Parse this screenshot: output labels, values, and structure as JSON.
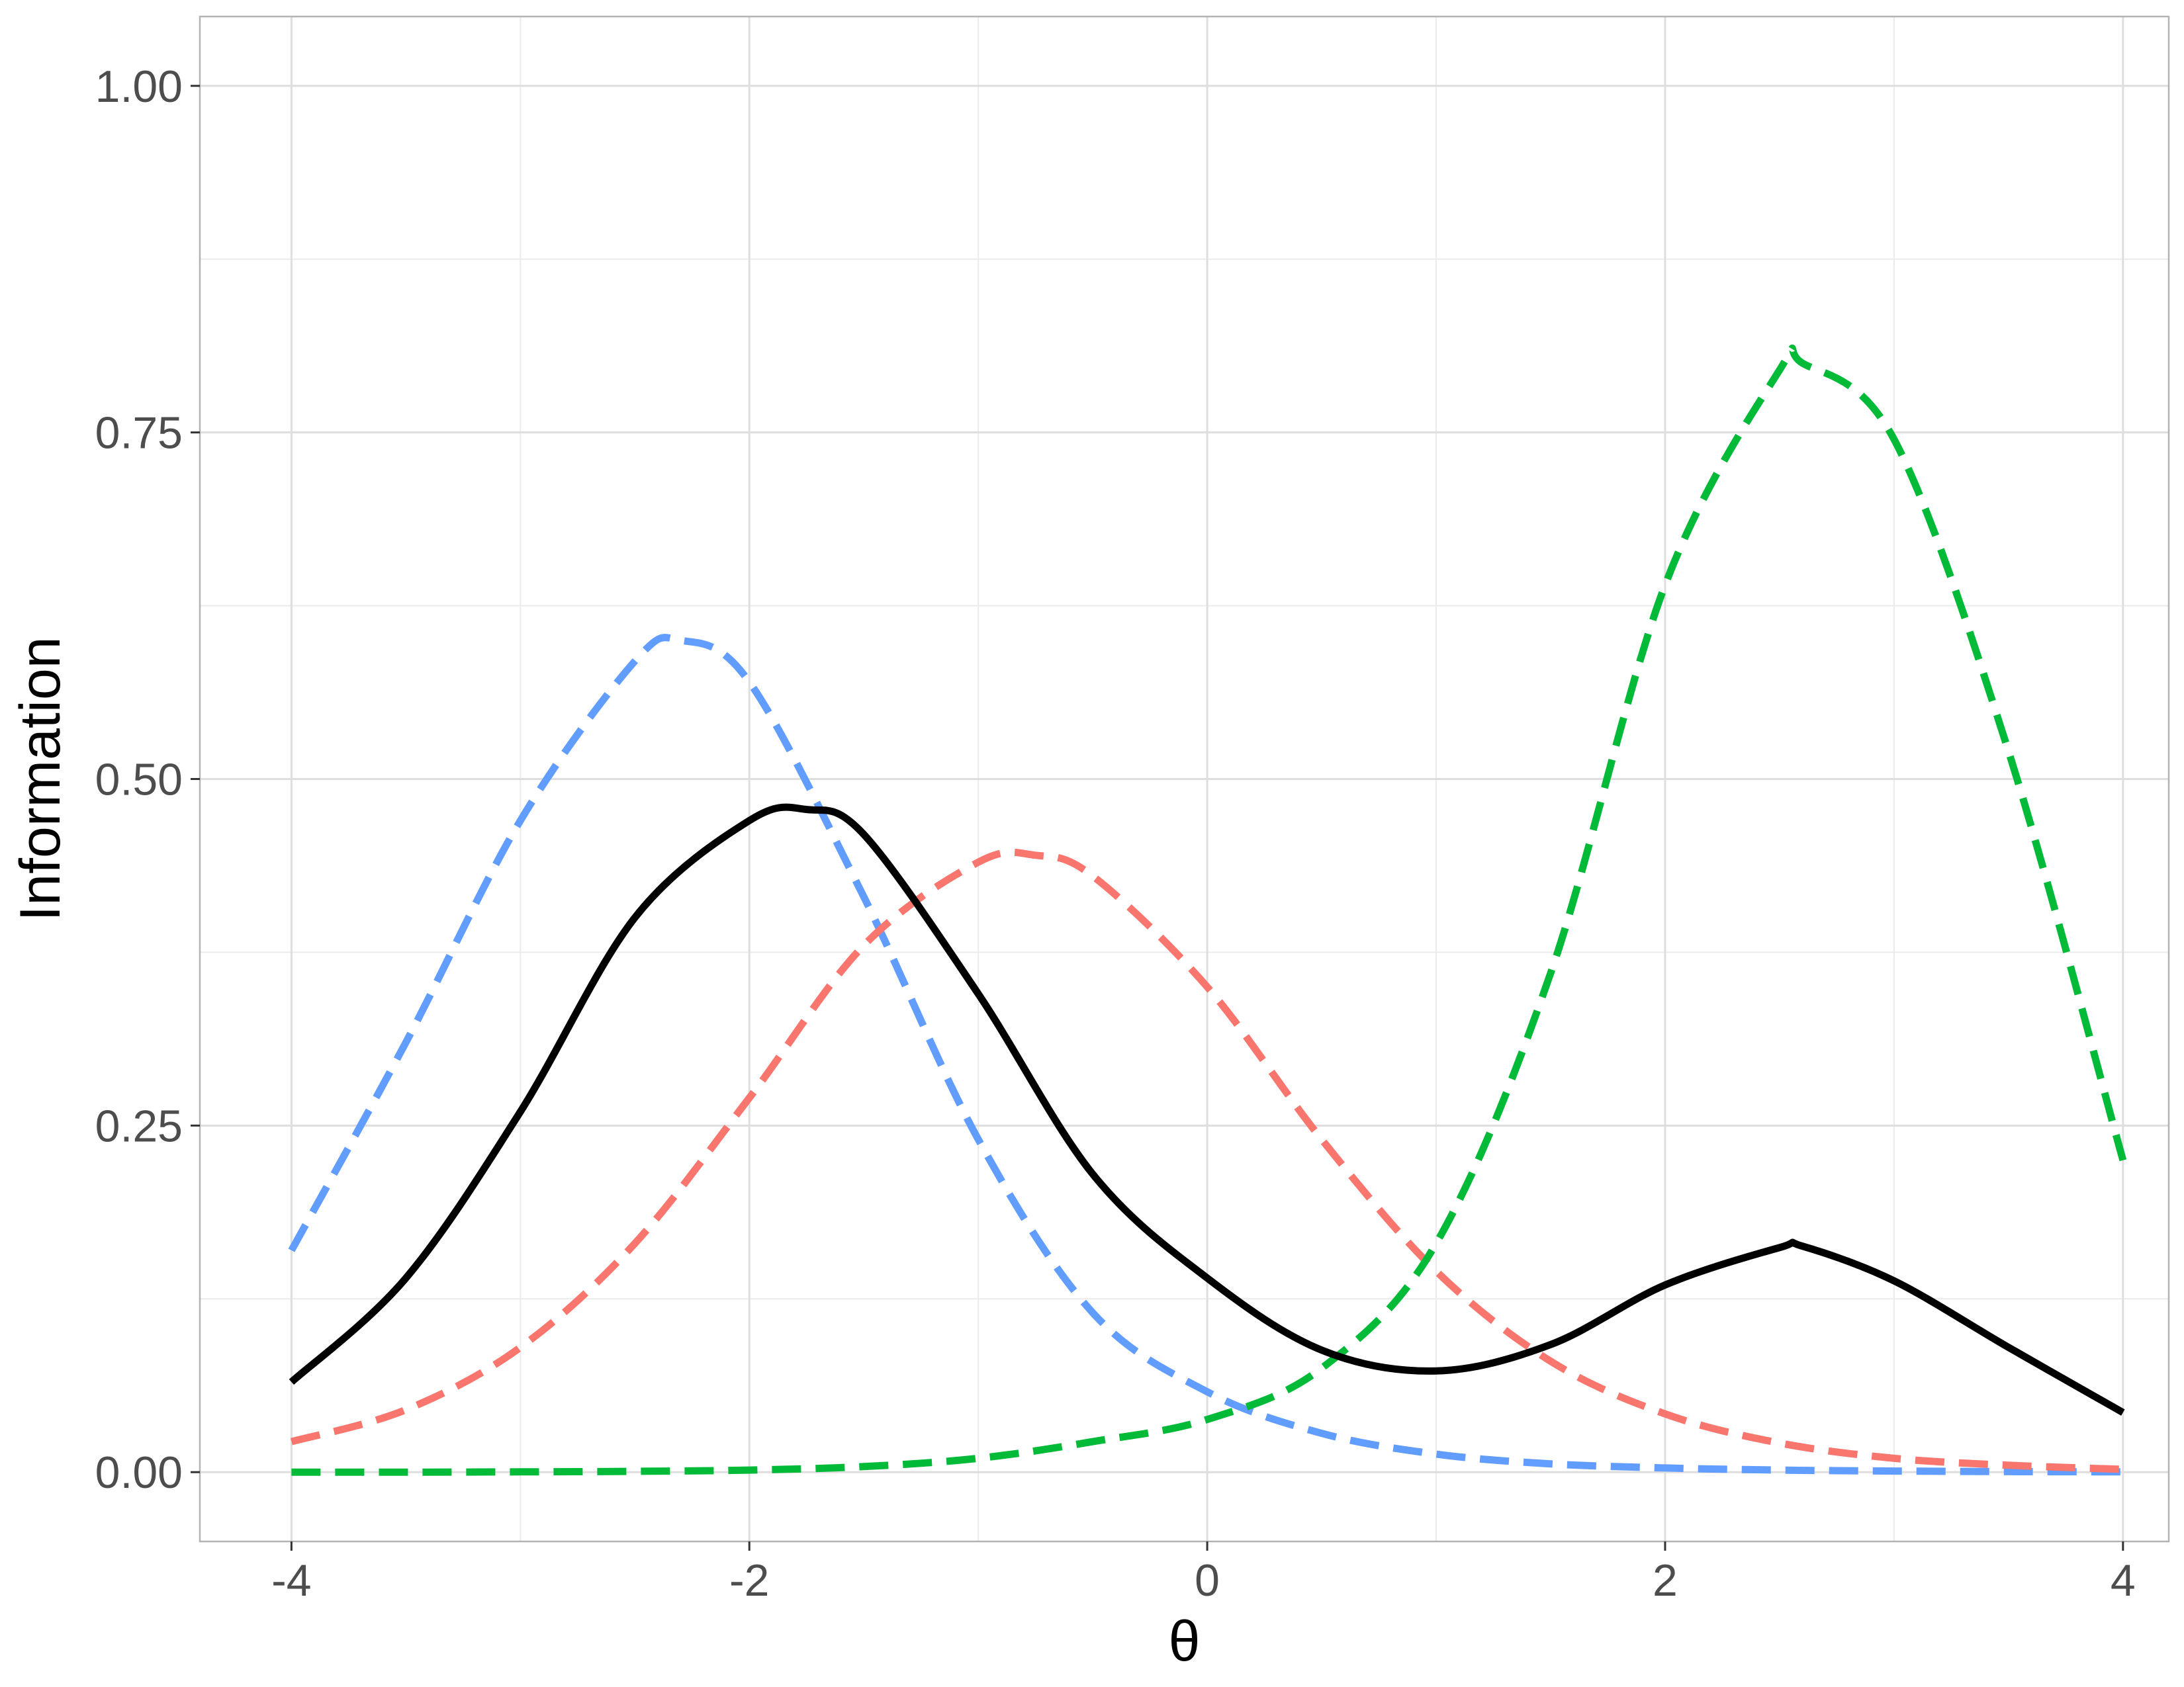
{
  "chart_data": {
    "type": "line",
    "xlabel": "θ",
    "ylabel": "Information",
    "xlim": [
      -4.4,
      4.2
    ],
    "ylim": [
      -0.05,
      1.05
    ],
    "x_ticks": [
      -4,
      -2,
      0,
      2,
      4
    ],
    "x_tick_labels": [
      "-4",
      "-2",
      "0",
      "2",
      "4"
    ],
    "y_ticks": [
      0,
      0.25,
      0.5,
      0.75,
      1.0
    ],
    "y_tick_labels": [
      "0.00",
      "0.25",
      "0.50",
      "0.75",
      "1.00"
    ],
    "grid": true,
    "legend": "none",
    "series": [
      {
        "color": "#000000",
        "dash": "solid",
        "x": [
          -4,
          -3.5,
          -3,
          -2.5,
          -2,
          -1.75,
          -1.5,
          -1,
          -0.5,
          0,
          0.5,
          1,
          1.5,
          2,
          2.5,
          2.6,
          3,
          3.5,
          4
        ],
        "values": [
          0.065,
          0.14,
          0.26,
          0.4,
          0.47,
          0.478,
          0.46,
          0.345,
          0.215,
          0.14,
          0.088,
          0.073,
          0.092,
          0.135,
          0.162,
          0.163,
          0.138,
          0.09,
          0.043
        ]
      },
      {
        "color": "#619CFF",
        "dash": "dashed",
        "x": [
          -4,
          -3.5,
          -3,
          -2.5,
          -2.3,
          -2,
          -1.5,
          -1,
          -0.5,
          0,
          0.5,
          1,
          1.5,
          2,
          2.5,
          3,
          3.5,
          4
        ],
        "values": [
          0.16,
          0.31,
          0.47,
          0.585,
          0.6,
          0.57,
          0.415,
          0.24,
          0.115,
          0.058,
          0.028,
          0.013,
          0.006,
          0.003,
          0.0015,
          0.0008,
          0.0004,
          0.0002
        ]
      },
      {
        "color": "#F8766D",
        "dash": "dashed",
        "x": [
          -4,
          -3.5,
          -3,
          -2.5,
          -2,
          -1.5,
          -1,
          -0.75,
          -0.5,
          0,
          0.5,
          1,
          1.5,
          2,
          2.5,
          3,
          3.5,
          4
        ],
        "values": [
          0.022,
          0.045,
          0.09,
          0.165,
          0.27,
          0.38,
          0.44,
          0.445,
          0.43,
          0.35,
          0.24,
          0.145,
          0.08,
          0.042,
          0.021,
          0.01,
          0.005,
          0.002
        ]
      },
      {
        "color": "#00BA38",
        "dash": "dashed",
        "x": [
          -4,
          -3.5,
          -3,
          -2.5,
          -2,
          -1.5,
          -1,
          -0.5,
          0,
          0.5,
          1,
          1.5,
          2,
          2.5,
          2.6,
          3,
          3.5,
          4
        ],
        "values": [
          0.0,
          0.0,
          0.0002,
          0.0006,
          0.0015,
          0.004,
          0.01,
          0.022,
          0.038,
          0.075,
          0.165,
          0.36,
          0.64,
          0.795,
          0.8,
          0.745,
          0.52,
          0.225
        ]
      }
    ]
  }
}
